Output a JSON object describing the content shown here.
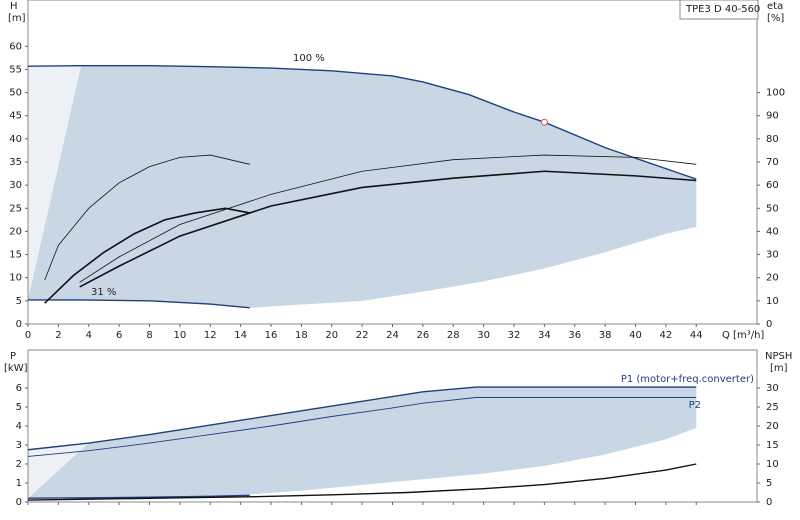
{
  "chart_data": [
    {
      "type": "line",
      "ylabel": "H",
      "yunit": "[m]",
      "y2label": "eta",
      "y2unit": "[%]",
      "xlabel": "Q [m³/h]",
      "model": "TPE3 D 40-560",
      "annotations": [
        "100 %",
        "31 %"
      ],
      "xlim": [
        0,
        48
      ],
      "xticks": [
        0,
        2,
        4,
        6,
        8,
        10,
        12,
        14,
        16,
        18,
        20,
        22,
        24,
        26,
        28,
        30,
        32,
        34,
        36,
        38,
        40,
        42,
        44
      ],
      "ylim": [
        0,
        70
      ],
      "yticks": [
        0,
        5,
        10,
        15,
        20,
        25,
        30,
        35,
        40,
        45,
        50,
        55,
        60
      ],
      "y2lim": [
        0,
        140
      ],
      "y2ticks": [
        0,
        10,
        20,
        30,
        40,
        50,
        60,
        70,
        80,
        90,
        100
      ],
      "envelope": {
        "color": "#c9d7e4",
        "light": "#edf1f6",
        "x": [
          14.6,
          18,
          22,
          26,
          30,
          34,
          38,
          42,
          44
        ],
        "values": [
          3.5,
          4.2,
          5,
          7,
          9.2,
          12,
          15.5,
          19.5,
          21
        ]
      },
      "series": [
        {
          "color": "#1f3f7f",
          "width": 1.4,
          "x": [
            0,
            3.5,
            8,
            12,
            16,
            20,
            24,
            26,
            29,
            32,
            34,
            38,
            44
          ],
          "values": [
            55.7,
            55.8,
            55.8,
            55.6,
            55.3,
            54.7,
            53.6,
            52.3,
            49.6,
            45.8,
            43.6,
            38.1,
            31.3
          ]
        },
        {
          "color": "#1f3f7f",
          "width": 1.4,
          "x": [
            0,
            3.5,
            8,
            12,
            14.6
          ],
          "values": [
            5.2,
            5.2,
            5,
            4.3,
            3.5
          ]
        },
        {
          "color": "#111111",
          "width": 0.8,
          "axis": "y2",
          "x": [
            1.1,
            2,
            4,
            6,
            8,
            10,
            12,
            14.6
          ],
          "values": [
            19,
            34,
            50,
            61,
            68,
            72,
            73,
            69
          ]
        },
        {
          "color": "#111111",
          "width": 1.6,
          "axis": "y2",
          "x": [
            1.1,
            3,
            5,
            7,
            9,
            11,
            13,
            14.6
          ],
          "values": [
            9,
            21,
            31,
            39,
            45,
            48,
            50,
            48
          ]
        },
        {
          "color": "#111111",
          "width": 0.8,
          "axis": "y2",
          "x": [
            3.4,
            6,
            10,
            16,
            22,
            28,
            34,
            40,
            44
          ],
          "values": [
            18,
            29,
            43,
            56,
            66,
            71,
            73,
            72,
            69
          ]
        },
        {
          "color": "#111111",
          "width": 1.6,
          "axis": "y2",
          "x": [
            3.4,
            6,
            10,
            16,
            22,
            28,
            34,
            40,
            44
          ],
          "values": [
            16,
            25,
            38,
            51,
            59,
            63,
            66,
            64,
            62
          ]
        }
      ],
      "operating_point": {
        "x": 34,
        "y": 43.6,
        "color": "#e05050"
      }
    },
    {
      "type": "line",
      "ylabel": "P",
      "yunit": "[kW]",
      "y2label": "NPSH",
      "y2unit": "[m]",
      "xlim": [
        0,
        48
      ],
      "xticks": [
        0,
        2,
        4,
        6,
        8,
        10,
        12,
        14,
        16,
        18,
        20,
        22,
        24,
        26,
        28,
        30,
        32,
        34,
        36,
        38,
        40,
        42,
        44
      ],
      "ylim": [
        0,
        8
      ],
      "yticks": [
        0,
        1,
        2,
        3,
        4,
        5,
        6
      ],
      "y2lim": [
        0,
        40
      ],
      "y2ticks": [
        0,
        5,
        10,
        15,
        20,
        25,
        30
      ],
      "envelope": {
        "color": "#c9d7e4",
        "light": "#edf1f6",
        "x": [
          14.6,
          18,
          22,
          26,
          30,
          34,
          38,
          42,
          44
        ],
        "values": [
          0.4,
          0.6,
          0.9,
          1.2,
          1.5,
          1.9,
          2.5,
          3.3,
          3.9
        ]
      },
      "series": [
        {
          "name": "P1 (motor+freq.converter)",
          "color": "#1f3f7f",
          "width": 1.4,
          "x": [
            0,
            4,
            8,
            12,
            16,
            20,
            24,
            26,
            29.5,
            44
          ],
          "values": [
            2.75,
            3.1,
            3.55,
            4.05,
            4.55,
            5.05,
            5.55,
            5.8,
            6.05,
            6.05
          ]
        },
        {
          "color": "#1f3f7f",
          "width": 1.4,
          "x": [
            0,
            4,
            8,
            12,
            14.6
          ],
          "values": [
            0.2,
            0.22,
            0.25,
            0.3,
            0.35
          ]
        },
        {
          "name": "P2",
          "color": "#1f3f7f",
          "width": 0.9,
          "x": [
            0,
            4,
            8,
            12,
            16,
            20,
            24,
            26,
            29.5,
            44
          ],
          "values": [
            2.4,
            2.7,
            3.1,
            3.55,
            4.0,
            4.5,
            4.95,
            5.2,
            5.5,
            5.5
          ]
        },
        {
          "color": "#111111",
          "width": 1.4,
          "axis": "y2",
          "x": [
            0,
            5,
            10,
            15,
            20,
            25,
            30,
            34,
            38,
            42,
            44
          ],
          "values": [
            0.5,
            0.8,
            1.1,
            1.4,
            1.9,
            2.5,
            3.5,
            4.6,
            6.2,
            8.4,
            10
          ]
        }
      ]
    }
  ]
}
